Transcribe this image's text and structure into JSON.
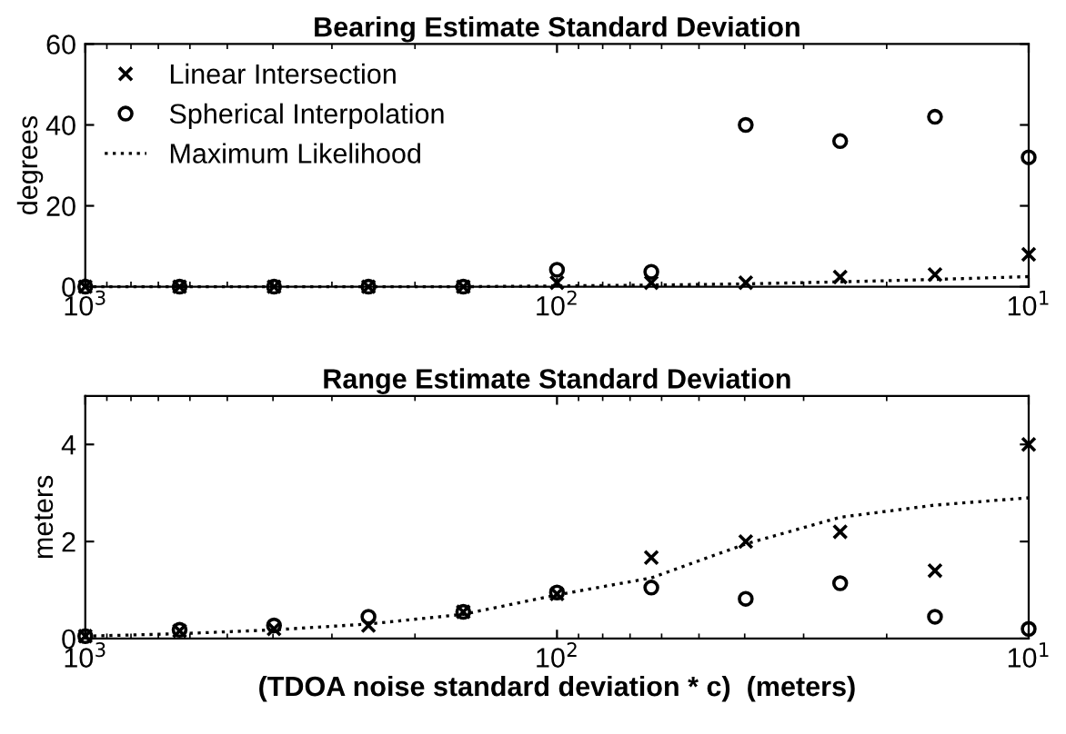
{
  "chart_data": [
    {
      "type": "scatter",
      "title": "Bearing Estimate Standard Deviation",
      "ylabel": "degrees",
      "x": [
        1000,
        631,
        398,
        251,
        158,
        100,
        63.1,
        39.8,
        25.1,
        15.8,
        10
      ],
      "log": "x",
      "xlim": [
        1000,
        10
      ],
      "xticks": [
        {
          "value": 1000,
          "label": "10$^{3}$"
        },
        {
          "value": 100,
          "label": "10$^{2}$"
        },
        {
          "value": 10,
          "label": "10$^{1}$"
        }
      ],
      "ylim": [
        0,
        60
      ],
      "yticks": [
        0,
        20,
        40,
        60
      ],
      "grid": false,
      "legend": "top left",
      "series": [
        {
          "name": "Linear Intersection",
          "color": "#000000",
          "marker": "cross",
          "values": [
            0,
            0,
            0,
            0,
            0,
            1,
            1,
            1,
            2.4,
            3,
            8
          ]
        },
        {
          "name": "Spherical Interpolation",
          "color": "#000000",
          "marker": "circle",
          "values": [
            0,
            0,
            0,
            0,
            0,
            4.2,
            3.7,
            40,
            36,
            42,
            32
          ]
        },
        {
          "name": "Maximum Likelihood",
          "color": "#000000",
          "type": "line",
          "marker": "none",
          "line_style": "dotted",
          "values": [
            0,
            0,
            0,
            0,
            0,
            0.2,
            0.4,
            0.7,
            1.2,
            1.8,
            2.5
          ]
        }
      ]
    },
    {
      "type": "scatter",
      "title": "Range Estimate Standard Deviation",
      "ylabel": "meters",
      "xlabel": "(TDOA noise standard deviation * c)  (meters)",
      "x": [
        1000,
        631,
        398,
        251,
        158,
        100,
        63.1,
        39.8,
        25.1,
        15.8,
        10
      ],
      "log": "x",
      "xlim": [
        1000,
        10
      ],
      "xticks": [
        {
          "value": 1000,
          "label": "10$^{3}$"
        },
        {
          "value": 100,
          "label": "10$^{2}$"
        },
        {
          "value": 10,
          "label": "10$^{1}$"
        }
      ],
      "ylim": [
        0,
        5
      ],
      "yticks": [
        0,
        2,
        4
      ],
      "grid": false,
      "legend": false,
      "series": [
        {
          "color": "#000000",
          "marker": "cross",
          "values": [
            0.05,
            0.16,
            0.2,
            0.27,
            0.55,
            0.92,
            1.67,
            2.0,
            2.2,
            1.4,
            4.0
          ]
        },
        {
          "color": "#000000",
          "marker": "circle",
          "values": [
            0.05,
            0.18,
            0.27,
            0.45,
            0.55,
            0.95,
            1.05,
            0.82,
            1.14,
            0.45,
            0.2
          ]
        },
        {
          "color": "#000000",
          "type": "line",
          "marker": "none",
          "line_style": "dotted",
          "values": [
            0.05,
            0.1,
            0.18,
            0.3,
            0.5,
            0.9,
            1.25,
            1.95,
            2.5,
            2.75,
            2.9
          ]
        }
      ]
    }
  ]
}
